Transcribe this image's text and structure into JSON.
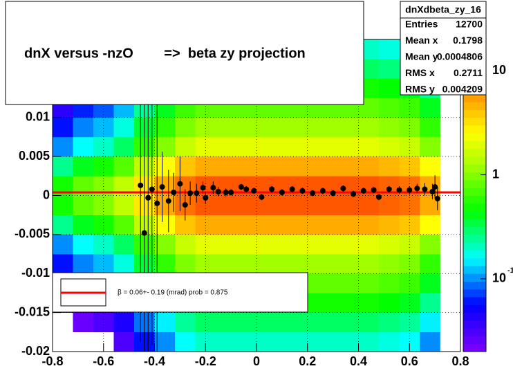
{
  "chart_data": {
    "type": "profile2d",
    "title": "dnX versus -nzO        =>  beta zy projection",
    "xlim": [
      -0.8,
      0.8
    ],
    "xticks": [
      -0.8,
      -0.6,
      -0.4,
      -0.2,
      0,
      0.2,
      0.4,
      0.6,
      0.8
    ],
    "ylim": [
      -0.02,
      0.02
    ],
    "yticks": [
      -0.02,
      -0.015,
      -0.01,
      -0.005,
      0,
      0.005,
      0.01
    ],
    "grid": true,
    "zlim": [
      0.02,
      20
    ],
    "zlog": true,
    "zticks": [
      {
        "value": 0.1,
        "label": "10",
        "exponent": "-1"
      },
      1,
      10
    ],
    "heatmap": {
      "xbins": [
        -0.8,
        -0.72,
        -0.64,
        -0.56,
        -0.48,
        -0.4,
        -0.32,
        -0.24,
        -0.16,
        -0.08,
        0,
        0.08,
        0.16,
        0.24,
        0.32,
        0.4,
        0.48,
        0.56,
        0.64,
        0.72,
        0.8
      ],
      "ybins": [
        -0.02,
        -0.0175,
        -0.015,
        -0.0125,
        -0.01,
        -0.0075,
        -0.005,
        -0.0025,
        0,
        0.0025,
        0.005,
        0.0075,
        0.01,
        0.0125,
        0.015,
        0.0175,
        0.02
      ],
      "z": [
        [
          0.01,
          0.016,
          0.02,
          0.03,
          0.06,
          0.1,
          0.16,
          0.2,
          0.2,
          0.2,
          0.2,
          0.2,
          0.2,
          0.2,
          0.2,
          0.2,
          0.18,
          0.16,
          0.1,
          0
        ],
        [
          0.015,
          0.024,
          0.03,
          0.045,
          0.09,
          0.15,
          0.24,
          0.3,
          0.3,
          0.3,
          0.3,
          0.3,
          0.3,
          0.3,
          0.3,
          0.3,
          0.27,
          0.24,
          0.15,
          0
        ],
        [
          0.025,
          0.04,
          0.05,
          0.075,
          0.15,
          0.25,
          0.4,
          0.5,
          0.5,
          0.5,
          0.5,
          0.5,
          0.5,
          0.5,
          0.5,
          0.5,
          0.45,
          0.4,
          0.25,
          0
        ],
        [
          0.04,
          0.064,
          0.08,
          0.12,
          0.24,
          0.4,
          0.64,
          0.8,
          0.8,
          0.8,
          0.8,
          0.8,
          0.8,
          0.8,
          0.8,
          0.8,
          0.72,
          0.64,
          0.4,
          0
        ],
        [
          0.06,
          0.096,
          0.12,
          0.18,
          0.36,
          0.6,
          0.96,
          1.2,
          1.2,
          1.2,
          1.2,
          1.2,
          1.2,
          1.2,
          1.2,
          1.2,
          1.08,
          0.96,
          0.6,
          0
        ],
        [
          0.1,
          0.16,
          0.2,
          0.3,
          0.6,
          1,
          1.6,
          2,
          2,
          2,
          2,
          2,
          2,
          2,
          2,
          2,
          1.8,
          1.6,
          1,
          0
        ],
        [
          0.25,
          0.4,
          0.5,
          0.75,
          1.5,
          2.5,
          4,
          5,
          5,
          5,
          5,
          5,
          5,
          5,
          5,
          5,
          4.5,
          4,
          2.5,
          0
        ],
        [
          0.5,
          0.8,
          1,
          1.5,
          3,
          5,
          8,
          10,
          10,
          10,
          10,
          10,
          10,
          10,
          10,
          10,
          9,
          8,
          5,
          0
        ],
        [
          0.5,
          0.8,
          1,
          1.5,
          3,
          5,
          8,
          10,
          10,
          10,
          10,
          10,
          10,
          10,
          10,
          10,
          9,
          8,
          5,
          0
        ],
        [
          0.25,
          0.4,
          0.5,
          0.75,
          1.5,
          2.5,
          4,
          5,
          5,
          5,
          5,
          5,
          5,
          5,
          5,
          5,
          4.5,
          4,
          2.5,
          0
        ],
        [
          0.1,
          0.16,
          0.2,
          0.3,
          0.6,
          1,
          1.6,
          2,
          2,
          2,
          2,
          2,
          2,
          2,
          2,
          2,
          1.8,
          1.6,
          1,
          0
        ],
        [
          0.06,
          0.096,
          0.12,
          0.18,
          0.36,
          0.6,
          0.96,
          1.2,
          1.2,
          1.2,
          1.2,
          1.2,
          1.2,
          1.2,
          1.2,
          1.2,
          1.08,
          0.96,
          0.6,
          0
        ],
        [
          0.04,
          0.064,
          0.08,
          0.12,
          0.24,
          0.4,
          0.64,
          0.8,
          0.8,
          0.8,
          0.8,
          0.8,
          0.8,
          0.8,
          0.8,
          0.8,
          0.72,
          0.64,
          0.4,
          0
        ],
        [
          0.025,
          0.04,
          0.05,
          0.075,
          0.15,
          0.25,
          0.4,
          0.5,
          0.5,
          0.5,
          0.5,
          0.5,
          0.5,
          0.5,
          0.5,
          0.5,
          0.45,
          0.4,
          0.25,
          0
        ],
        [
          0.015,
          0.024,
          0.03,
          0.045,
          0.09,
          0.15,
          0.24,
          0.3,
          0.3,
          0.3,
          0.3,
          0.3,
          0.3,
          0.3,
          0.3,
          0.3,
          0.27,
          0.24,
          0.15,
          0
        ],
        [
          0.01,
          0.016,
          0.02,
          0.03,
          0.06,
          0.1,
          0.16,
          0.2,
          0.2,
          0.2,
          0.2,
          0.2,
          0.2,
          0.2,
          0.2,
          0.2,
          0.18,
          0.16,
          0.1,
          0
        ]
      ]
    },
    "profile": {
      "color": "#000000",
      "x": [
        -0.455,
        -0.44,
        -0.425,
        -0.41,
        -0.39,
        -0.37,
        -0.345,
        -0.325,
        -0.3,
        -0.28,
        -0.26,
        -0.235,
        -0.21,
        -0.2,
        -0.17,
        -0.15,
        -0.12,
        -0.1,
        -0.06,
        -0.04,
        -0.01,
        0.02,
        0.06,
        0.1,
        0.14,
        0.18,
        0.22,
        0.26,
        0.3,
        0.34,
        0.38,
        0.42,
        0.46,
        0.48,
        0.52,
        0.56,
        0.6,
        0.63,
        0.66,
        0.69,
        0.7,
        0.71
      ],
      "values": [
        0.0013,
        -0.0048,
        -0.0003,
        0.0008,
        -0.001,
        0.0011,
        -0.0007,
        0.0004,
        0.0015,
        -0.0012,
        0.0003,
        0.0003,
        0.001,
        -0.0003,
        0.001,
        0.0005,
        0.0004,
        0.0004,
        0.0011,
        0.0008,
        0.0006,
        -0.0002,
        0.0008,
        0.0004,
        0.0008,
        0.0006,
        0.0003,
        0.0006,
        0.0003,
        0.0009,
        0.0002,
        0.0006,
        0.0007,
        -0.0002,
        0.0008,
        0.0007,
        0.0007,
        0.0009,
        0.0008,
        0.0005,
        0.0011,
        -0.0004
      ],
      "errors": [
        0.02,
        0.02,
        0.02,
        0.02,
        0.02,
        0.0045,
        0.004,
        0.0025,
        0.0035,
        0.002,
        0.0015,
        0.0012,
        0.0008,
        0.0008,
        0.0008,
        0.0006,
        0.0005,
        0.0004,
        0.0004,
        0.0004,
        0.0004,
        0.0004,
        0.0004,
        0.0004,
        0.0004,
        0.0004,
        0.0004,
        0.0004,
        0.0004,
        0.0004,
        0.0004,
        0.0004,
        0.0004,
        0.0004,
        0.0004,
        0.0005,
        0.0005,
        0.0006,
        0.0008,
        0.001,
        0.0015,
        0.0015
      ]
    },
    "fit": {
      "color": "#ff0000",
      "y": 0.0004,
      "label": "β =    0.06+- 0.19 (mrad) prob = 0.875"
    },
    "stats": {
      "title": "dnXdbeta_zy_16",
      "rows": [
        [
          "Entries",
          "12700"
        ],
        [
          "Mean x",
          "0.1798"
        ],
        [
          "Mean y",
          "0.0004806"
        ],
        [
          "RMS x",
          "0.2711"
        ],
        [
          "RMS y",
          "0.004209"
        ]
      ]
    }
  }
}
